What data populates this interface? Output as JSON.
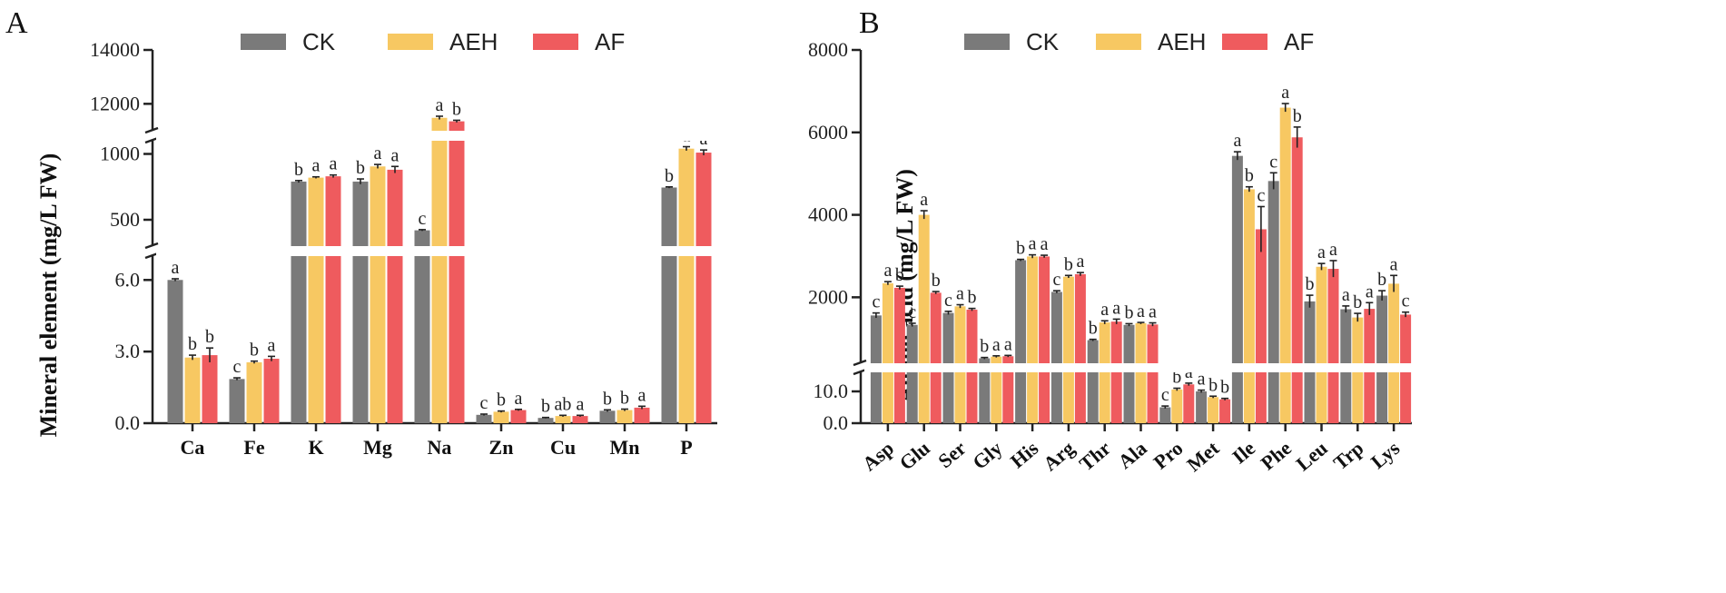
{
  "colors": {
    "CK": "#7a7a7a",
    "AEH": "#f7c862",
    "AF": "#ef5b5e"
  },
  "chart_data": [
    {
      "panel": "A",
      "type": "bar",
      "ylabel": "Mineral element (mg/L  FW)",
      "legend": [
        "CK",
        "AEH",
        "AF"
      ],
      "categories": [
        "Ca",
        "Fe",
        "K",
        "Mg",
        "Na",
        "Zn",
        "Cu",
        "Mn",
        "P"
      ],
      "series": [
        {
          "name": "CK",
          "values": [
            6.0,
            1.85,
            790,
            790,
            420,
            0.35,
            0.22,
            0.52,
            745
          ],
          "errors": [
            0.05,
            0.05,
            8,
            20,
            5,
            0.03,
            0.02,
            0.04,
            5
          ],
          "letters": [
            "a",
            "c",
            "b",
            "b",
            "c",
            "c",
            "b",
            "b",
            "b"
          ]
        },
        {
          "name": "AEH",
          "values": [
            2.75,
            2.55,
            820,
            905,
            11480,
            0.48,
            0.3,
            0.55,
            1040
          ],
          "errors": [
            0.1,
            0.05,
            6,
            15,
            60,
            0.03,
            0.03,
            0.04,
            15
          ],
          "letters": [
            "b",
            "b",
            "a",
            "a",
            "a",
            "b",
            "ab",
            "b",
            "a"
          ]
        },
        {
          "name": "AF",
          "values": [
            2.85,
            2.7,
            830,
            880,
            11350,
            0.55,
            0.3,
            0.65,
            1010
          ],
          "errors": [
            0.3,
            0.1,
            10,
            25,
            40,
            0.03,
            0.03,
            0.06,
            20
          ],
          "letters": [
            "b",
            "a",
            "a",
            "a",
            "b",
            "a",
            "a",
            "a",
            "a"
          ]
        }
      ],
      "ticks": [
        "0.0",
        "3.0",
        "6.0",
        "500",
        "1000",
        "12000",
        "14000"
      ],
      "axis_segments": [
        {
          "range": [
            0,
            7
          ],
          "ticks": [
            0,
            3,
            6
          ]
        },
        {
          "range": [
            300,
            1100
          ],
          "ticks": [
            500,
            1000
          ]
        },
        {
          "range": [
            11000,
            14000
          ],
          "ticks": [
            12000,
            14000
          ]
        }
      ]
    },
    {
      "panel": "B",
      "type": "bar",
      "ylabel": "Amino acid (mg/L  FW)",
      "legend": [
        "CK",
        "AEH",
        "AF"
      ],
      "categories": [
        "Asp",
        "Glu",
        "Ser",
        "Gly",
        "His",
        "Arg",
        "Thr",
        "Ala",
        "Pro",
        "Met",
        "Ile",
        "Phe",
        "Leu",
        "Trp",
        "Lys"
      ],
      "series": [
        {
          "name": "CK",
          "values": [
            1560,
            1330,
            1620,
            520,
            2900,
            2130,
            960,
            1330,
            5.0,
            10.0,
            5430,
            4820,
            1900,
            1710,
            2040
          ],
          "errors": [
            60,
            40,
            40,
            20,
            20,
            30,
            20,
            30,
            0.4,
            0.4,
            100,
            200,
            150,
            80,
            120
          ],
          "letters": [
            "c",
            "c",
            "c",
            "b",
            "b",
            "c",
            "b",
            "b",
            "c",
            "a",
            "a",
            "c",
            "b",
            "a",
            "b"
          ]
        },
        {
          "name": "AEH",
          "values": [
            2340,
            4000,
            1780,
            560,
            2990,
            2500,
            1390,
            1370,
            10.6,
            8.2,
            4620,
            6600,
            2740,
            1510,
            2330
          ],
          "errors": [
            40,
            100,
            40,
            20,
            40,
            30,
            40,
            20,
            0.4,
            0.3,
            60,
            100,
            80,
            100,
            200
          ],
          "letters": [
            "a",
            "a",
            "a",
            "a",
            "a",
            "b",
            "a",
            "a",
            "b",
            "b",
            "b",
            "a",
            "a",
            "b",
            "a"
          ]
        },
        {
          "name": "AF",
          "values": [
            2230,
            2110,
            1700,
            570,
            2990,
            2560,
            1410,
            1340,
            12.2,
            7.5,
            3650,
            5880,
            2690,
            1720,
            1580
          ],
          "errors": [
            40,
            30,
            30,
            20,
            30,
            40,
            60,
            40,
            0.4,
            0.3,
            550,
            250,
            200,
            150,
            60
          ],
          "letters": [
            "b",
            "b",
            "b",
            "a",
            "a",
            "a",
            "a",
            "a",
            "a",
            "b",
            "c",
            "b",
            "a",
            "a",
            "c"
          ]
        }
      ],
      "ticks": [
        "0.0",
        "10.0",
        "2000",
        "4000",
        "6000",
        "8000"
      ],
      "axis_segments": [
        {
          "range": [
            0,
            16
          ],
          "ticks": [
            0,
            10
          ]
        },
        {
          "range": [
            400,
            8000
          ],
          "ticks": [
            2000,
            4000,
            6000,
            8000
          ]
        }
      ]
    }
  ]
}
